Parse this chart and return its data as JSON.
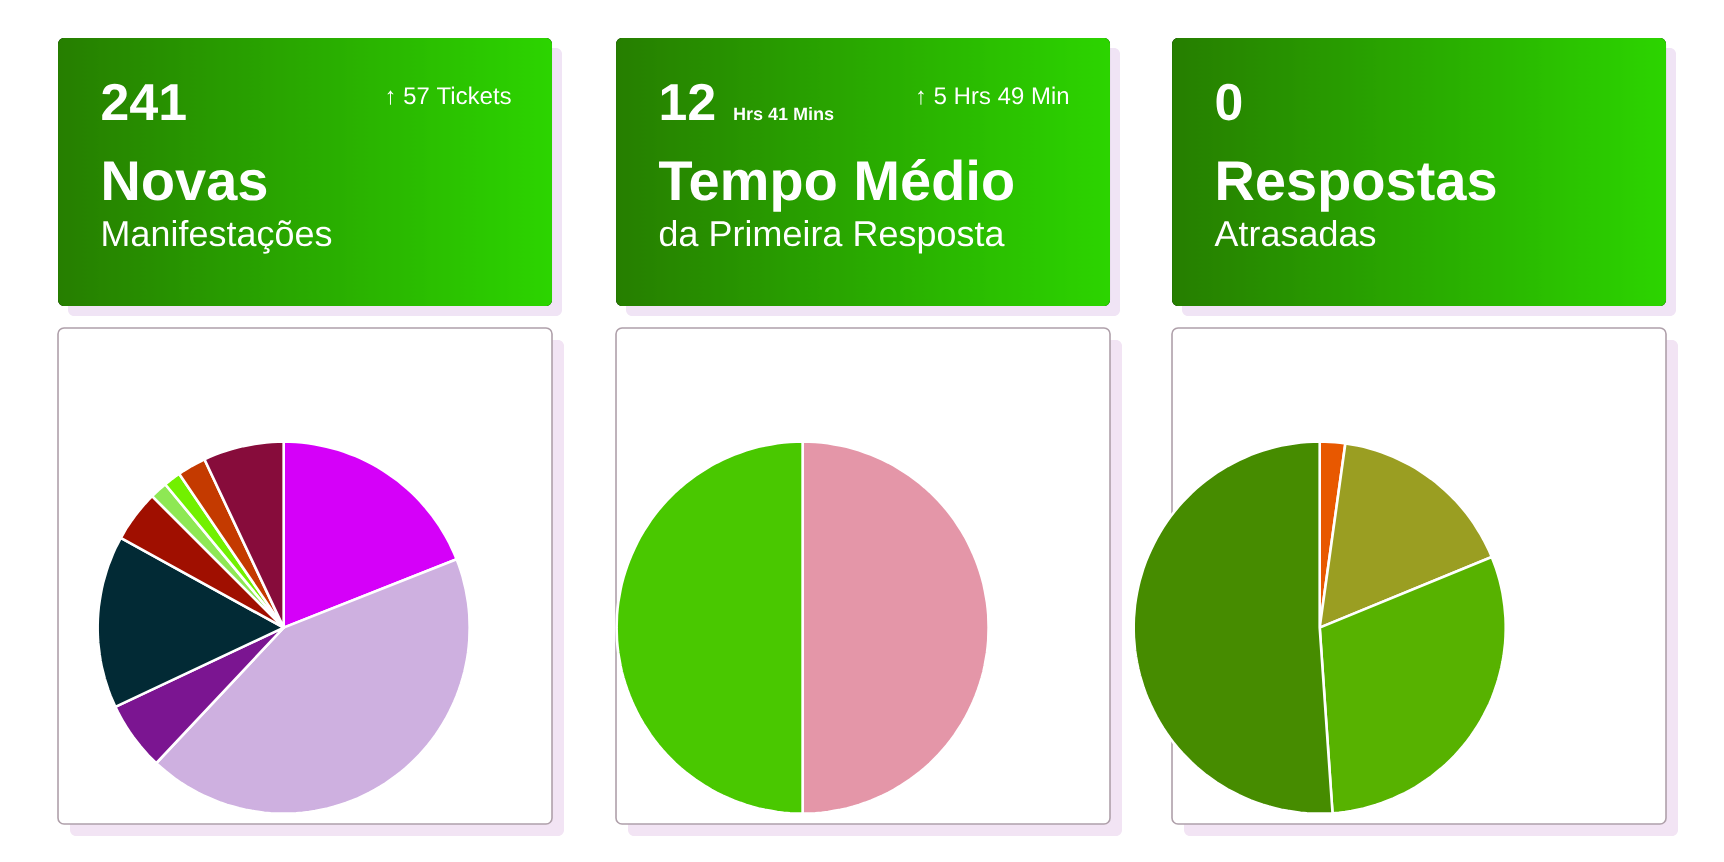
{
  "chart_data": [
    {
      "type": "other",
      "title": "Novas",
      "subtitle": "Manifestações",
      "annotations": [
        "241",
        "↑ 57 Tickets"
      ]
    },
    {
      "type": "other",
      "title": "Tempo Médio",
      "subtitle": "da Primeira Resposta",
      "annotations": [
        "12",
        "Hrs 41 Mins",
        "↑ 5 Hrs 49 Min"
      ]
    },
    {
      "type": "other",
      "title": "Respostas",
      "subtitle": "Atrasadas",
      "annotations": [
        "0"
      ]
    },
    {
      "type": "pie",
      "categories": [
        null,
        null,
        null,
        null,
        null,
        null,
        null,
        null,
        null
      ],
      "values": [
        19,
        43,
        6,
        15,
        4.5,
        1.5,
        1.5,
        2.5,
        7
      ],
      "colors": [
        "#d500f9",
        "#ceb0e0",
        "#7b1591",
        "#022a35",
        "#a00f00",
        "#8ee854",
        "#72f000",
        "#c43a00",
        "#870c3b"
      ]
    },
    {
      "type": "pie",
      "categories": [
        null,
        null
      ],
      "values": [
        50,
        50
      ],
      "colors": [
        "#e496a8",
        "#49c800"
      ]
    },
    {
      "type": "pie",
      "categories": [
        null,
        null,
        null,
        null
      ],
      "values": [
        2.2,
        16.6,
        30.1,
        51.1
      ],
      "colors": [
        "#e85800",
        "#9a9e22",
        "#57b200",
        "#468c00"
      ]
    }
  ]
}
